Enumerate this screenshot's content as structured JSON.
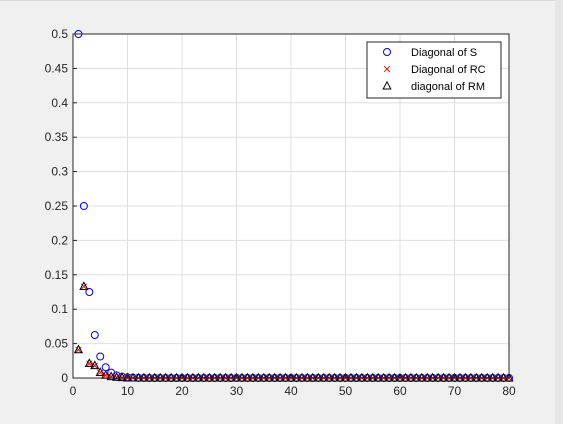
{
  "chart_data": {
    "type": "scatter",
    "xlim": [
      0,
      80
    ],
    "ylim": [
      0,
      0.5
    ],
    "xticks": [
      0,
      10,
      20,
      30,
      40,
      50,
      60,
      70,
      80
    ],
    "yticks": [
      0,
      0.05,
      0.1,
      0.15,
      0.2,
      0.25,
      0.3,
      0.35,
      0.4,
      0.45,
      0.5
    ],
    "xtick_labels": [
      "0",
      "10",
      "20",
      "30",
      "40",
      "50",
      "60",
      "70",
      "80"
    ],
    "ytick_labels": [
      "0",
      "0.05",
      "0.1",
      "0.15",
      "0.2",
      "0.25",
      "0.3",
      "0.35",
      "0.4",
      "0.45",
      "0.5"
    ],
    "grid": true,
    "legend_position": "top-right",
    "series": [
      {
        "name": "Diagonal of S",
        "marker": "circle",
        "color": "#0000ff",
        "x": [
          1,
          2,
          3,
          4,
          5,
          6,
          7,
          8,
          9,
          10,
          11,
          12,
          13,
          14,
          15,
          16,
          17,
          18,
          19,
          20,
          21,
          22,
          23,
          24,
          25,
          26,
          27,
          28,
          29,
          30,
          31,
          32,
          33,
          34,
          35,
          36,
          37,
          38,
          39,
          40,
          41,
          42,
          43,
          44,
          45,
          46,
          47,
          48,
          49,
          50,
          51,
          52,
          53,
          54,
          55,
          56,
          57,
          58,
          59,
          60,
          61,
          62,
          63,
          64,
          65,
          66,
          67,
          68,
          69,
          70,
          71,
          72,
          73,
          74,
          75,
          76,
          77,
          78,
          79,
          80
        ],
        "y": [
          0.5,
          0.25,
          0.125,
          0.0625,
          0.03125,
          0.015625,
          0.0078,
          0.0039,
          0.002,
          0.001,
          0.0005,
          0.0002,
          0.0001,
          0,
          0,
          0,
          0,
          0,
          0,
          0,
          0,
          0,
          0,
          0,
          0,
          0,
          0,
          0,
          0,
          0,
          0,
          0,
          0,
          0,
          0,
          0,
          0,
          0,
          0,
          0,
          0,
          0,
          0,
          0,
          0,
          0,
          0,
          0,
          0,
          0,
          0,
          0,
          0,
          0,
          0,
          0,
          0,
          0,
          0,
          0,
          0,
          0,
          0,
          0,
          0,
          0,
          0,
          0,
          0,
          0,
          0,
          0,
          0,
          0,
          0,
          0,
          0,
          0,
          0,
          0
        ]
      },
      {
        "name": "Diagonal of RC",
        "marker": "x",
        "color": "#ff0000",
        "x": [
          1,
          2,
          3,
          4,
          5,
          6,
          7,
          8,
          9,
          10,
          11,
          12,
          13,
          14,
          15,
          16,
          17,
          18,
          19,
          20,
          21,
          22,
          23,
          24,
          25,
          26,
          27,
          28,
          29,
          30,
          31,
          32,
          33,
          34,
          35,
          36,
          37,
          38,
          39,
          40,
          41,
          42,
          43,
          44,
          45,
          46,
          47,
          48,
          49,
          50,
          51,
          52,
          53,
          54,
          55,
          56,
          57,
          58,
          59,
          60,
          61,
          62,
          63,
          64,
          65,
          66,
          67,
          68,
          69,
          70,
          71,
          72,
          73,
          74,
          75,
          76,
          77,
          78,
          79,
          80
        ],
        "y": [
          0.041,
          0.133,
          0.021,
          0.018,
          0.008,
          0.004,
          0.002,
          0.001,
          0.0005,
          0,
          0,
          0,
          0,
          0,
          0,
          0,
          0,
          0,
          0,
          0,
          0,
          0,
          0,
          0,
          0,
          0,
          0,
          0,
          0,
          0,
          0,
          0,
          0,
          0,
          0,
          0,
          0,
          0,
          0,
          0,
          0,
          0,
          0,
          0,
          0,
          0,
          0,
          0,
          0,
          0,
          0,
          0,
          0,
          0,
          0,
          0,
          0,
          0,
          0,
          0,
          0,
          0,
          0,
          0,
          0,
          0,
          0,
          0,
          0,
          0,
          0,
          0,
          0,
          0,
          0,
          0,
          0,
          0,
          0,
          0
        ]
      },
      {
        "name": "diagonal of RM",
        "marker": "triangle",
        "color": "#000000",
        "x": [
          1,
          2,
          3,
          4,
          5,
          6,
          7,
          8,
          9,
          10,
          11,
          12,
          13,
          14,
          15,
          16,
          17,
          18,
          19,
          20,
          21,
          22,
          23,
          24,
          25,
          26,
          27,
          28,
          29,
          30,
          31,
          32,
          33,
          34,
          35,
          36,
          37,
          38,
          39,
          40,
          41,
          42,
          43,
          44,
          45,
          46,
          47,
          48,
          49,
          50,
          51,
          52,
          53,
          54,
          55,
          56,
          57,
          58,
          59,
          60,
          61,
          62,
          63,
          64,
          65,
          66,
          67,
          68,
          69,
          70,
          71,
          72,
          73,
          74,
          75,
          76,
          77,
          78,
          79,
          80
        ],
        "y": [
          0.041,
          0.133,
          0.021,
          0.018,
          0.008,
          0.004,
          0.002,
          0.001,
          0.0005,
          0,
          0,
          0,
          0,
          0,
          0,
          0,
          0,
          0,
          0,
          0,
          0,
          0,
          0,
          0,
          0,
          0,
          0,
          0,
          0,
          0,
          0,
          0,
          0,
          0,
          0,
          0,
          0,
          0,
          0,
          0,
          0,
          0,
          0,
          0,
          0,
          0,
          0,
          0,
          0,
          0,
          0,
          0,
          0,
          0,
          0,
          0,
          0,
          0,
          0,
          0,
          0,
          0,
          0,
          0,
          0,
          0,
          0,
          0,
          0,
          0,
          0,
          0,
          0,
          0,
          0,
          0,
          0,
          0,
          0,
          0
        ]
      }
    ]
  }
}
